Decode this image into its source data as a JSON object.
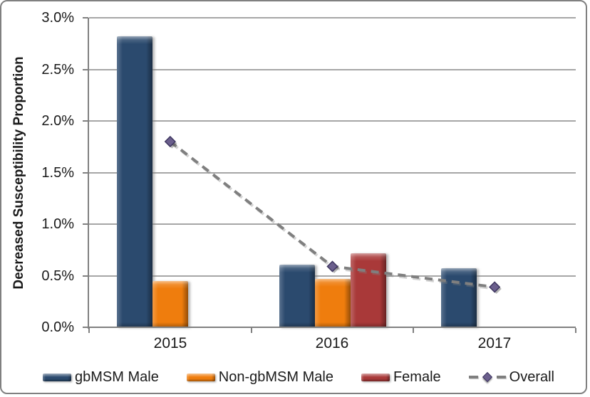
{
  "chart_data": {
    "type": "bar",
    "subtype": "grouped-bars-with-overlay-line",
    "title": "",
    "xlabel": "",
    "ylabel": "Decreased Susceptibility Proportion",
    "categories": [
      "2015",
      "2016",
      "2017"
    ],
    "series": [
      {
        "name": "gbMSM Male",
        "kind": "bar",
        "color": "#2B4A6E",
        "values": [
          2.82,
          0.61,
          0.57
        ]
      },
      {
        "name": "Non-gbMSM Male",
        "kind": "bar",
        "color": "#EF7D0D",
        "values": [
          0.45,
          0.47,
          null
        ]
      },
      {
        "name": "Female",
        "kind": "bar",
        "color": "#A93939",
        "values": [
          null,
          0.72,
          null
        ]
      },
      {
        "name": "Overall",
        "kind": "line",
        "color": "#7F7F7F",
        "marker": "diamond",
        "marker_color": "#6B5F8D",
        "marker_border": "#3E3660",
        "values": [
          1.8,
          0.59,
          0.39
        ]
      }
    ],
    "ylim": [
      0,
      3
    ],
    "ytick_step": 0.5,
    "ytick_labels": [
      "0.0%",
      "0.5%",
      "1.0%",
      "1.5%",
      "2.0%",
      "2.5%",
      "3.0%"
    ],
    "value_unit": "%",
    "grid": "horizontal",
    "legend_position": "bottom"
  },
  "colors": {
    "background": "#FFFFFF",
    "border": "#808080",
    "axis": "#808080",
    "gridline": "#A6A6A6",
    "text": "#1A1A1A"
  }
}
